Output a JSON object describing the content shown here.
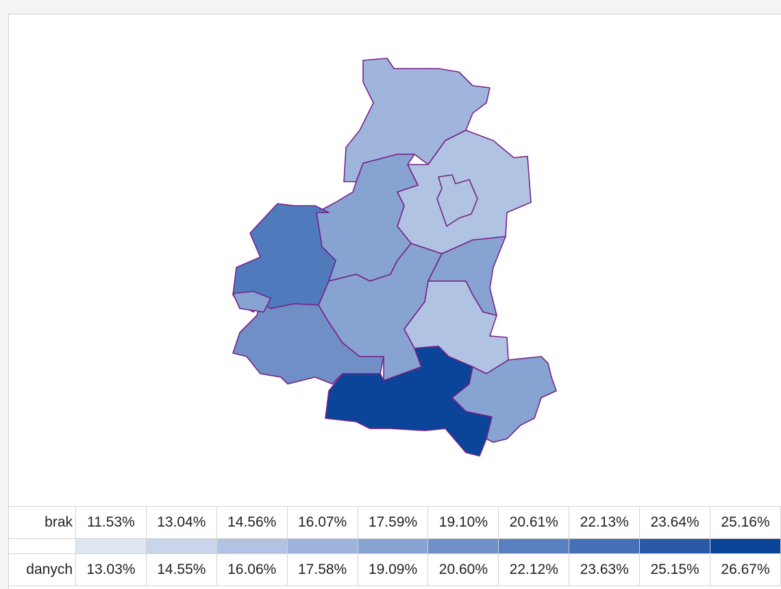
{
  "legend": {
    "no_data": [
      "brak",
      "danych"
    ],
    "from": [
      "11.53%",
      "13.04%",
      "14.56%",
      "16.07%",
      "17.59%",
      "19.10%",
      "20.61%",
      "22.13%",
      "23.64%",
      "25.16%"
    ],
    "to": [
      "13.03%",
      "14.55%",
      "16.06%",
      "17.58%",
      "19.09%",
      "20.60%",
      "22.12%",
      "23.63%",
      "25.15%",
      "26.67%"
    ],
    "colors": [
      "#dfe6f3",
      "#c8d5eb",
      "#b1c3e3",
      "#9db3dc",
      "#87a3d1",
      "#6f8fc6",
      "#5a7fbe",
      "#4570b5",
      "#2a57a6",
      "#0a4599"
    ]
  }
}
